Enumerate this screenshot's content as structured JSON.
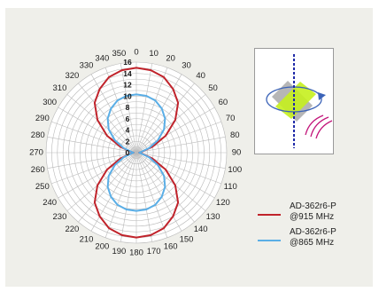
{
  "chart_data": {
    "type": "polar",
    "title": "",
    "radial_ticks": [
      "0",
      "2",
      "4",
      "6",
      "8",
      "10",
      "12",
      "14",
      "16"
    ],
    "radial_range": [
      0,
      16
    ],
    "angle_labels": [
      "0",
      "10",
      "20",
      "30",
      "40",
      "50",
      "60",
      "70",
      "80",
      "90",
      "100",
      "110",
      "120",
      "130",
      "140",
      "150",
      "160",
      "170",
      "180",
      "190",
      "200",
      "210",
      "220",
      "230",
      "240",
      "250",
      "260",
      "270",
      "280",
      "290",
      "300",
      "310",
      "320",
      "330",
      "340",
      "350"
    ],
    "angles_deg": [
      0,
      10,
      20,
      30,
      40,
      50,
      60,
      70,
      80,
      90,
      100,
      110,
      120,
      130,
      140,
      150,
      160,
      170,
      180,
      190,
      200,
      210,
      220,
      230,
      240,
      250,
      260,
      270,
      280,
      290,
      300,
      310,
      320,
      330,
      340,
      350
    ],
    "grid": true,
    "series": [
      {
        "name": "AD-362r6-P @915 MHz",
        "legend_lines": [
          "AD-362r6-P",
          "@915 MHz"
        ],
        "color": "#c0232b",
        "values": [
          15.0,
          14.8,
          14.2,
          13.0,
          11.5,
          9.0,
          6.0,
          3.0,
          1.0,
          0.5,
          1.0,
          3.0,
          6.0,
          9.0,
          11.5,
          13.0,
          14.2,
          14.8,
          15.0,
          14.8,
          14.2,
          13.0,
          11.5,
          9.0,
          6.0,
          3.0,
          1.0,
          0.5,
          1.0,
          3.0,
          6.0,
          9.0,
          11.5,
          13.0,
          14.2,
          14.8
        ]
      },
      {
        "name": "AD-362r6-P @865 MHz",
        "legend_lines": [
          "AD-362r6-P",
          "@865 MHz"
        ],
        "color": "#5aaee6",
        "values": [
          10.3,
          10.2,
          9.8,
          9.0,
          7.9,
          6.4,
          4.4,
          2.4,
          0.9,
          0.5,
          0.9,
          2.4,
          4.4,
          6.4,
          7.9,
          9.0,
          9.8,
          10.2,
          10.3,
          10.2,
          9.8,
          9.0,
          7.9,
          6.4,
          4.4,
          2.4,
          0.9,
          0.5,
          0.9,
          2.4,
          4.4,
          6.4,
          7.9,
          9.0,
          9.8,
          10.2
        ]
      }
    ]
  },
  "colors": {
    "panel_background": "#efefea",
    "plot_background": "#ffffff",
    "grid": "#b9b9b9",
    "antenna_axis": "#1f2aa8",
    "antenna_plate": "#c5f01e",
    "rotation_arrow": "#3b63b8",
    "radio_waves": "#c2157a"
  },
  "diagram": {
    "icon": "antenna-polarization-diagram"
  }
}
